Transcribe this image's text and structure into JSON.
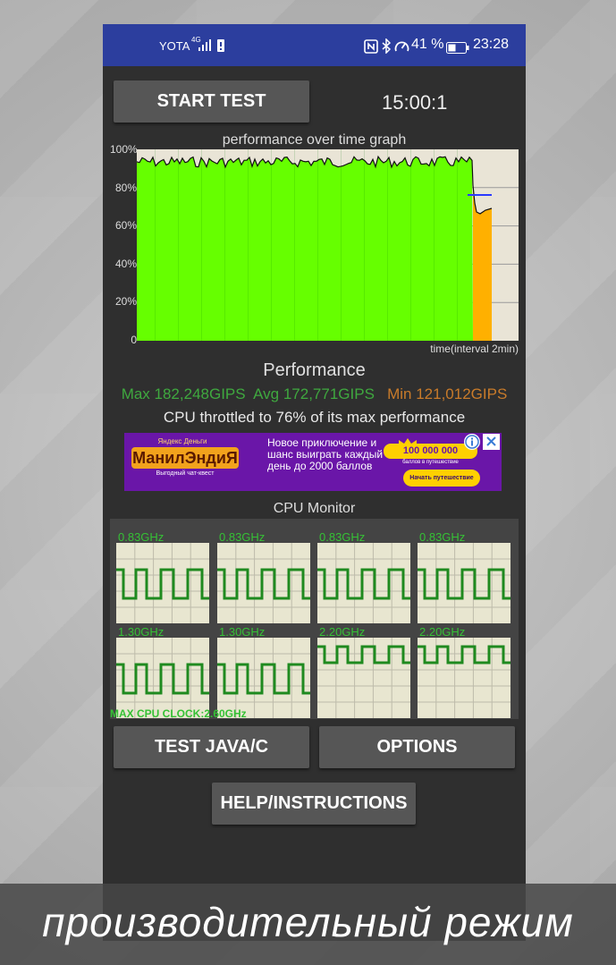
{
  "statusbar": {
    "carrier": "YOTA",
    "net": "4G",
    "battery_percent": "41 %",
    "time": "23:28"
  },
  "controls": {
    "start_label": "START TEST",
    "timer": "15:00:1",
    "test_label": "TEST JAVA/C",
    "options_label": "OPTIONS",
    "help_label": "HELP/INSTRUCTIONS"
  },
  "graph": {
    "title": "performance over time graph",
    "y_ticks": [
      "100%",
      "80%",
      "60%",
      "40%",
      "20%",
      "0"
    ],
    "x_label": "time(interval 2min)"
  },
  "performance": {
    "title": "Performance",
    "max": "Max 182,248GIPS",
    "avg": "Avg 172,771GIPS",
    "min": "Min 121,012GIPS",
    "throttle_text": "CPU throttled to 76% of its max performance"
  },
  "ad": {
    "brand_small": "Яндекс Деньги",
    "brand": "МанилЭндиЯ",
    "brand_sub": "Выгодный чат-квест",
    "text": "Новое приключение и шанс выиграть каждый день до 2000 баллов",
    "prize": "100 000 000",
    "prize_sub": "баллов в путешествие",
    "cta": "Начать путешествие"
  },
  "cpu_monitor": {
    "title": "CPU Monitor",
    "cores": [
      {
        "freq": "0.83GHz",
        "level": "low"
      },
      {
        "freq": "0.83GHz",
        "level": "low"
      },
      {
        "freq": "0.83GHz",
        "level": "low"
      },
      {
        "freq": "0.83GHz",
        "level": "low"
      },
      {
        "freq": "1.30GHz",
        "level": "low"
      },
      {
        "freq": "1.30GHz",
        "level": "low"
      },
      {
        "freq": "2.20GHz",
        "level": "high"
      },
      {
        "freq": "2.20GHz",
        "level": "high"
      }
    ],
    "max_clock": "MAX CPU CLOCK:2.60GHz"
  },
  "caption": "производительный режим",
  "colors": {
    "statusbar": "#2c3e9e",
    "good": "#66ff00",
    "throttled": "#ffb000",
    "max_stat": "#3fa83f",
    "avg_stat": "#3fa83f",
    "min_stat": "#c97b2a",
    "cpu_line": "#1f8a1f"
  }
}
